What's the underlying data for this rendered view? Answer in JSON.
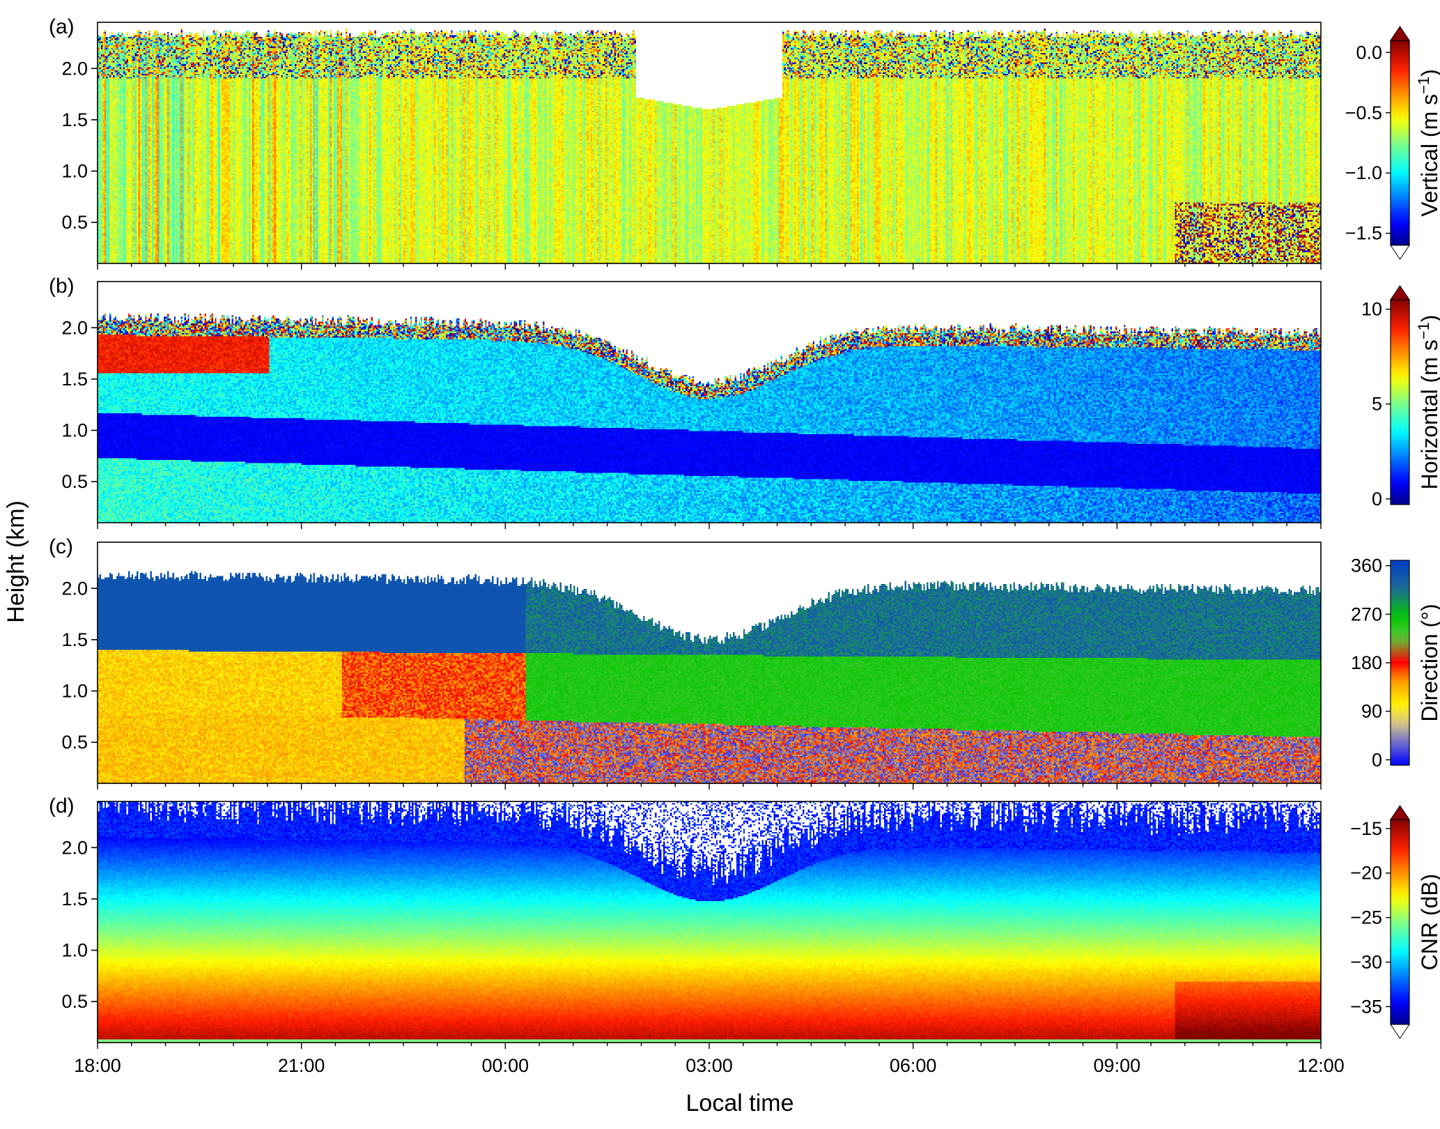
{
  "figure": {
    "ylabel": "Height (km)",
    "xlabel": "Local time"
  },
  "chart_data": [
    {
      "type": "heatmap",
      "panel_label": "(a)",
      "colorbar_title": "Vertical (m s⁻¹)",
      "colorbar_title_parts": {
        "base": "Vertical (m s",
        "sup": "−1",
        "close": ")"
      },
      "colorbar_ticks": [
        0.0,
        -0.5,
        -1.0,
        -1.5
      ],
      "colorbar_tick_labels": [
        "0.0",
        "−0.5",
        "−1.0",
        "−1.5"
      ],
      "colorbar_range": [
        -1.6,
        0.1
      ],
      "colormap": "jet",
      "extend": "both",
      "x_ticks": [
        "18:00",
        "21:00",
        "00:00",
        "03:00",
        "06:00",
        "09:00",
        "12:00"
      ],
      "y_ticks": [
        0.5,
        1.0,
        1.5,
        2.0
      ],
      "y_tick_labels": [
        "0.5",
        "1.0",
        "1.5",
        "2.0"
      ],
      "ylim": [
        0.1,
        2.45
      ],
      "xlim_hours": [
        18,
        36
      ]
    },
    {
      "type": "heatmap",
      "panel_label": "(b)",
      "colorbar_title": "Horizontal (m s⁻¹)",
      "colorbar_title_parts": {
        "base": "Horizontal (m s",
        "sup": "−1",
        "close": ")"
      },
      "colorbar_ticks": [
        10,
        5,
        0
      ],
      "colorbar_tick_labels": [
        "10",
        "5",
        "0"
      ],
      "colorbar_range": [
        -0.3,
        10.5
      ],
      "colormap": "jet",
      "extend": "max",
      "x_ticks": [
        "18:00",
        "21:00",
        "00:00",
        "03:00",
        "06:00",
        "09:00",
        "12:00"
      ],
      "y_ticks": [
        0.5,
        1.0,
        1.5,
        2.0
      ],
      "y_tick_labels": [
        "0.5",
        "1.0",
        "1.5",
        "2.0"
      ],
      "ylim": [
        0.1,
        2.45
      ],
      "xlim_hours": [
        18,
        36
      ]
    },
    {
      "type": "heatmap",
      "panel_label": "(c)",
      "colorbar_title": "Direction (°)",
      "colorbar_title_parts": {
        "base": "Direction (°)",
        "sup": "",
        "close": ""
      },
      "colorbar_ticks": [
        360,
        270,
        180,
        90,
        0
      ],
      "colorbar_tick_labels": [
        "360",
        "270",
        "180",
        "90",
        "0"
      ],
      "colorbar_range": [
        -10,
        370
      ],
      "colormap": "direction",
      "extend": "none",
      "x_ticks": [
        "18:00",
        "21:00",
        "00:00",
        "03:00",
        "06:00",
        "09:00",
        "12:00"
      ],
      "y_ticks": [
        0.5,
        1.0,
        1.5,
        2.0
      ],
      "y_tick_labels": [
        "0.5",
        "1.0",
        "1.5",
        "2.0"
      ],
      "ylim": [
        0.1,
        2.45
      ],
      "xlim_hours": [
        18,
        36
      ]
    },
    {
      "type": "heatmap",
      "panel_label": "(d)",
      "colorbar_title": "CNR (dB)",
      "colorbar_title_parts": {
        "base": "CNR (dB)",
        "sup": "",
        "close": ""
      },
      "colorbar_ticks": [
        -15,
        -20,
        -25,
        -30,
        -35
      ],
      "colorbar_tick_labels": [
        "−15",
        "−20",
        "−25",
        "−30",
        "−35"
      ],
      "colorbar_range": [
        -37,
        -14
      ],
      "colormap": "jet",
      "extend": "both",
      "x_ticks": [
        "18:00",
        "21:00",
        "00:00",
        "03:00",
        "06:00",
        "09:00",
        "12:00"
      ],
      "y_ticks": [
        0.5,
        1.0,
        1.5,
        2.0
      ],
      "y_tick_labels": [
        "0.5",
        "1.0",
        "1.5",
        "2.0"
      ],
      "ylim": [
        0.1,
        2.45
      ],
      "xlim_hours": [
        18,
        36
      ]
    }
  ]
}
